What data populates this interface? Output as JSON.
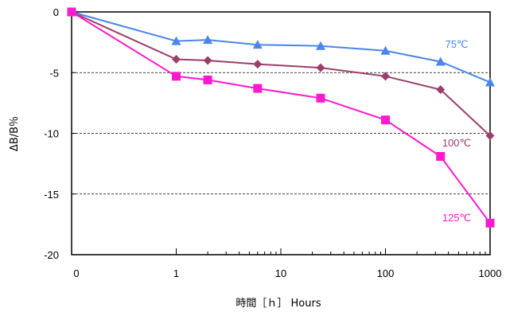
{
  "chart_data": {
    "type": "line",
    "xscale": "log (0 plotted at left edge)",
    "xlabel": "時間［ｈ］ Hours",
    "ylabel": "ΔB/B％",
    "x_ticks": [
      "0",
      "1",
      "10",
      "100",
      "1000"
    ],
    "y_ticks": [
      "0",
      "-5",
      "-10",
      "-15",
      "-20"
    ],
    "ylim": [
      -20,
      0
    ],
    "grid": "dashed horizontal at -5, -10, -15",
    "x": [
      0,
      1,
      2,
      6,
      24,
      100,
      336,
      1000
    ],
    "series": [
      {
        "name": "75℃",
        "color": "#4a86e8",
        "marker": "triangle",
        "values": [
          0,
          -2.4,
          -2.3,
          -2.7,
          -2.8,
          -3.2,
          -4.1,
          -5.8
        ]
      },
      {
        "name": "100℃",
        "color": "#9c3e6a",
        "marker": "diamond",
        "values": [
          0,
          -3.9,
          -4.0,
          -4.3,
          -4.6,
          -5.3,
          -6.4,
          -10.2
        ]
      },
      {
        "name": "125℃",
        "color": "#ff1acd",
        "marker": "square",
        "values": [
          0,
          -5.3,
          -5.6,
          -6.3,
          -7.1,
          -8.9,
          -11.9,
          -17.4
        ]
      }
    ]
  }
}
